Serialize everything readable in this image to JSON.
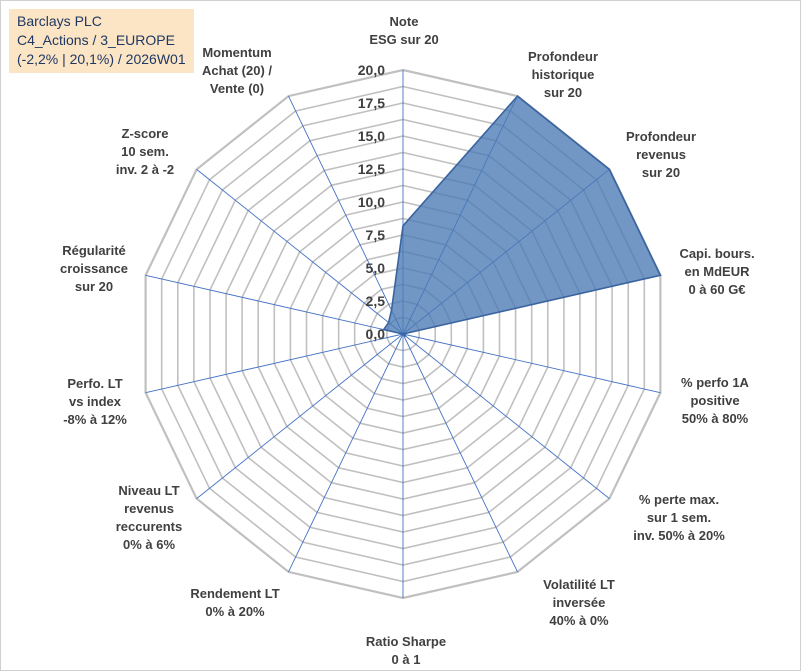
{
  "title": {
    "line1": "Barclays PLC",
    "line2": "C4_Actions / 3_EUROPE",
    "line3": "(-2,2% | 20,1%) / 2026W01"
  },
  "colors": {
    "fill": "#4a7ab5",
    "stroke": "#3a64a0",
    "grid": "#c0c0c0",
    "spoke": "#4472c4",
    "title_bg": "#fbe5c4",
    "title_text": "#1f3864"
  },
  "chart_data": {
    "type": "radar",
    "rmin": 0,
    "rmax": 20,
    "grid_step": 1.25,
    "ticks": [
      {
        "value": 0,
        "label": "0,0"
      },
      {
        "value": 2.5,
        "label": "2,5"
      },
      {
        "value": 5,
        "label": "5,0"
      },
      {
        "value": 7.5,
        "label": "7,5"
      },
      {
        "value": 10,
        "label": "10,0"
      },
      {
        "value": 12.5,
        "label": "12,5"
      },
      {
        "value": 15,
        "label": "15,0"
      },
      {
        "value": 17.5,
        "label": "17,5"
      },
      {
        "value": 20,
        "label": "20,0"
      }
    ],
    "axes": [
      {
        "label": [
          "Note",
          "ESG sur 20"
        ],
        "value": 8.2
      },
      {
        "label": [
          "Profondeur",
          "historique",
          "sur 20"
        ],
        "value": 20
      },
      {
        "label": [
          "Profondeur",
          "revenus",
          "sur 20"
        ],
        "value": 20
      },
      {
        "label": [
          "Capi. bours.",
          "en MdEUR",
          "0 à 60 G€"
        ],
        "value": 20
      },
      {
        "label": [
          "% perfo 1A",
          "positive",
          "50% à 80%"
        ],
        "value": 0
      },
      {
        "label": [
          "% perte max.",
          "sur 1 sem.",
          "inv. 50% à 20%"
        ],
        "value": 0.3
      },
      {
        "label": [
          "Volatilité LT",
          "inversée",
          "40% à 0%"
        ],
        "value": 0
      },
      {
        "label": [
          "Ratio Sharpe",
          "0 à 1"
        ],
        "value": 0
      },
      {
        "label": [
          "Rendement LT",
          "0% à 20%"
        ],
        "value": 0
      },
      {
        "label": [
          "Niveau LT",
          "revenus",
          "reccurents",
          "0% à 6%"
        ],
        "value": 0
      },
      {
        "label": [
          "Perfo. LT",
          "vs index",
          "-8% à 12%"
        ],
        "value": 0
      },
      {
        "label": [
          "Régularité",
          "croissance",
          "sur 20"
        ],
        "value": 1.5
      },
      {
        "label": [
          "Z-score",
          "10 sem.",
          "inv. 2 à -2"
        ],
        "value": 1.4
      },
      {
        "label": [
          "Momentum",
          "Achat (20) /",
          "Vente (0)"
        ],
        "value": 2.0
      }
    ]
  }
}
